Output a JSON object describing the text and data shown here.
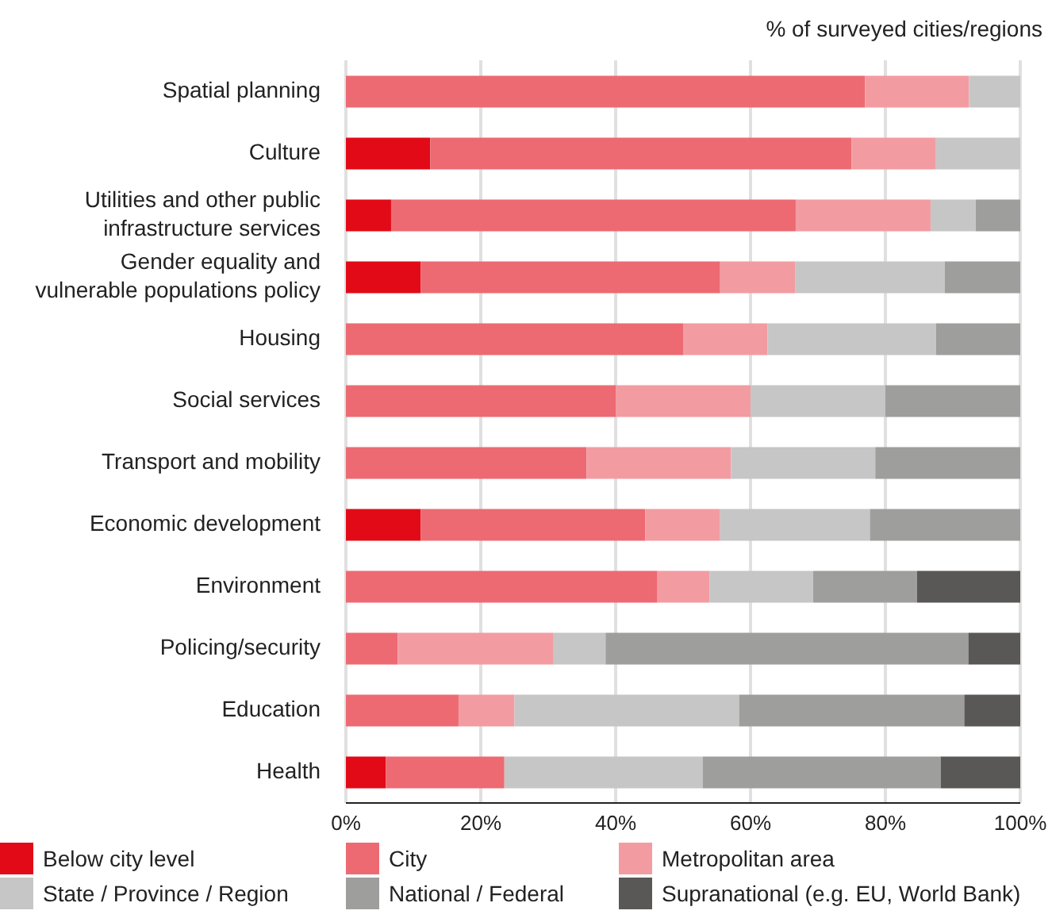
{
  "chart_data": {
    "type": "bar",
    "orientation": "horizontal",
    "stacked": true,
    "annotations": [
      "% of surveyed cities/regions"
    ],
    "categories": [
      "Spatial planning",
      "Culture",
      "Utilities and other public infrastructure services",
      "Gender equality and vulnerable populations policy",
      "Housing",
      "Social services",
      "Transport and mobility",
      "Economic development",
      "Environment",
      "Policing/security",
      "Education",
      "Health"
    ],
    "series": [
      {
        "name": "Below city level",
        "color": "#e20a17",
        "values": [
          0,
          12.5,
          6.7,
          11.1,
          0,
          0,
          0,
          11.1,
          0,
          0,
          0,
          5.9
        ]
      },
      {
        "name": "City",
        "color": "#ed6a72",
        "values": [
          77,
          62.5,
          60,
          44.4,
          50,
          40,
          35.7,
          33.3,
          46.2,
          7.7,
          16.7,
          17.6
        ]
      },
      {
        "name": "Metropolitan area",
        "color": "#f29ca2",
        "values": [
          15.4,
          12.5,
          20,
          11.1,
          12.5,
          20,
          21.4,
          11.1,
          7.7,
          23.1,
          8.3,
          0
        ]
      },
      {
        "name": "State / Province / Region",
        "color": "#c6c6c6",
        "values": [
          7.6,
          12.5,
          6.7,
          22.2,
          25,
          20,
          21.4,
          22.2,
          15.4,
          7.7,
          33.3,
          29.4
        ]
      },
      {
        "name": "National / Federal",
        "color": "#9e9e9c",
        "values": [
          0,
          0,
          6.6,
          11.2,
          12.5,
          20,
          21.5,
          22.3,
          15.4,
          53.8,
          33.4,
          35.3
        ]
      },
      {
        "name": "Supranational (e.g. EU, World Bank)",
        "color": "#5a5856",
        "values": [
          0,
          0,
          0,
          0,
          0,
          0,
          0,
          0,
          15.3,
          8,
          8.3,
          11.8
        ]
      }
    ],
    "xlim": [
      0,
      100
    ],
    "xticks": [
      {
        "value": 0,
        "label": "0%"
      },
      {
        "value": 20,
        "label": "20%"
      },
      {
        "value": 40,
        "label": "40%"
      },
      {
        "value": 60,
        "label": "60%"
      },
      {
        "value": 80,
        "label": "80%"
      },
      {
        "value": 100,
        "label": "100%"
      }
    ],
    "grid": "x",
    "legend": "bottom"
  }
}
